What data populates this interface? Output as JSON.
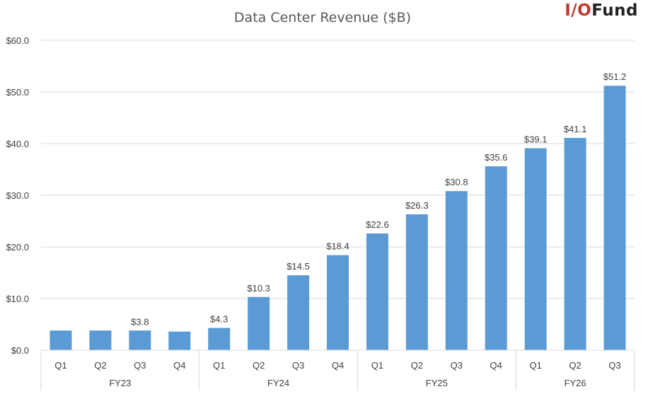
{
  "logo": {
    "part1": "I/O",
    "part2": "Fund"
  },
  "colors": {
    "bar": "#5b9bd5",
    "grid": "#d9d9d9",
    "text": "#404040",
    "title": "#595959",
    "logo_accent": "#c0392b",
    "logo_dark": "#222222"
  },
  "chart_data": {
    "type": "bar",
    "title": "Data Center Revenue ($B)",
    "xlabel": "",
    "ylabel": "",
    "ylim": [
      0,
      60
    ],
    "y_ticks": [
      "$0.0",
      "$10.0",
      "$20.0",
      "$30.0",
      "$40.0",
      "$50.0",
      "$60.0"
    ],
    "categories": [
      "Q1",
      "Q2",
      "Q3",
      "Q4",
      "Q1",
      "Q2",
      "Q3",
      "Q4",
      "Q1",
      "Q2",
      "Q3",
      "Q4",
      "Q1",
      "Q2",
      "Q3"
    ],
    "groups": [
      {
        "label": "FY23",
        "count": 4
      },
      {
        "label": "FY24",
        "count": 4
      },
      {
        "label": "FY25",
        "count": 4
      },
      {
        "label": "FY26",
        "count": 3
      }
    ],
    "values": [
      3.8,
      3.8,
      3.8,
      3.6,
      4.3,
      10.3,
      14.5,
      18.4,
      22.6,
      26.3,
      30.8,
      35.6,
      39.1,
      41.1,
      51.2
    ],
    "data_labels": [
      "",
      "",
      "$3.8",
      "",
      "$4.3",
      "$10.3",
      "$14.5",
      "$18.4",
      "$22.6",
      "$26.3",
      "$30.8",
      "$35.6",
      "$39.1",
      "$41.1",
      "$51.2"
    ],
    "grid": true,
    "legend": "none"
  }
}
